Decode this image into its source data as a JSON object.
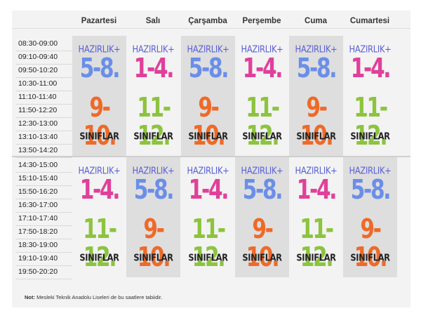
{
  "days": [
    "Pazartesi",
    "Salı",
    "Çarşamba",
    "Perşembe",
    "Cuma",
    "Cumartesi"
  ],
  "times_top": [
    "08:30-09:00",
    "09:10-09:40",
    "09:50-10:20",
    "10:30-11:00",
    "11:10-11:40",
    "11:50-12:20",
    "12:30-13:00",
    "13:10-13:40",
    "13:50-14:20"
  ],
  "times_bottom": [
    "14:30-15:00",
    "15:10-15:40",
    "15:50-16:20",
    "16:30-17:00",
    "17:10-17:40",
    "17:50-18:20",
    "18:30-19:00",
    "19:10-19:40",
    "19:50-20:20"
  ],
  "labels": {
    "prep": "HAZIRLIK+",
    "classes": "SINIFLAR"
  },
  "top_blocks": [
    {
      "g1": "5-8.",
      "g2": "9-10.",
      "shaded": true
    },
    {
      "g1": "1-4.",
      "g2": "11-12.",
      "shaded": false
    },
    {
      "g1": "5-8.",
      "g2": "9-10.",
      "shaded": true
    },
    {
      "g1": "1-4.",
      "g2": "11-12.",
      "shaded": false
    },
    {
      "g1": "5-8.",
      "g2": "9-10.",
      "shaded": true
    },
    {
      "g1": "1-4.",
      "g2": "11-12.",
      "shaded": false
    }
  ],
  "bottom_blocks": [
    {
      "g1": "1-4.",
      "g2": "11-12.",
      "shaded": false
    },
    {
      "g1": "5-8.",
      "g2": "9-10.",
      "shaded": true
    },
    {
      "g1": "1-4.",
      "g2": "11-12.",
      "shaded": false
    },
    {
      "g1": "5-8.",
      "g2": "9-10.",
      "shaded": true
    },
    {
      "g1": "1-4.",
      "g2": "11-12.",
      "shaded": false
    },
    {
      "g1": "5-8.",
      "g2": "9-10.",
      "shaded": true
    }
  ],
  "colors": {
    "blue": "#6b8ee8",
    "pink": "#e0409a",
    "orange": "#ee6a28",
    "green": "#8cc43e",
    "prep": "#5a5fd6"
  },
  "note": {
    "label": "Not:",
    "text": "Mesleki Teknik Anadolu Liseleri de bu saatlere tabiidir."
  }
}
